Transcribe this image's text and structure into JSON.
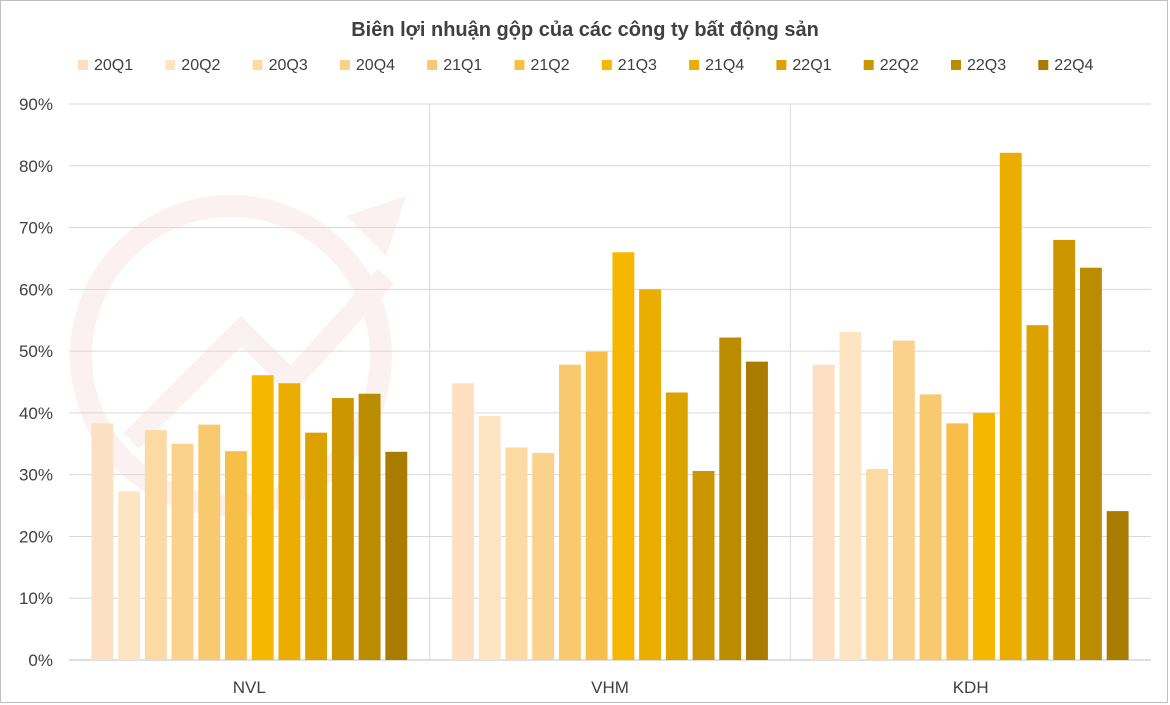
{
  "chart_data": {
    "type": "bar",
    "title": "Biên lợi nhuận gộp của các công ty bất động sản",
    "categories": [
      "NVL",
      "VHM",
      "KDH"
    ],
    "ylim": [
      0,
      90
    ],
    "y_ticks": [
      "0%",
      "10%",
      "20%",
      "30%",
      "40%",
      "50%",
      "60%",
      "70%",
      "80%",
      "90%"
    ],
    "grid": true,
    "legend_position": "top",
    "series": [
      {
        "name": "20Q1",
        "color": "#fde0c2",
        "values": [
          38.3,
          44.8,
          47.8
        ]
      },
      {
        "name": "20Q2",
        "color": "#fde5c3",
        "values": [
          27.3,
          39.5,
          53.1
        ]
      },
      {
        "name": "20Q3",
        "color": "#fdd9a3",
        "values": [
          37.2,
          34.4,
          30.9
        ]
      },
      {
        "name": "20Q4",
        "color": "#fbd28c",
        "values": [
          35.0,
          33.5,
          51.7
        ]
      },
      {
        "name": "21Q1",
        "color": "#f9c96f",
        "values": [
          38.1,
          47.8,
          43.0
        ]
      },
      {
        "name": "21Q2",
        "color": "#f7bf4a",
        "values": [
          33.8,
          49.9,
          38.3
        ]
      },
      {
        "name": "21Q3",
        "color": "#f5b700",
        "values": [
          46.1,
          66.0,
          40.0
        ]
      },
      {
        "name": "21Q4",
        "color": "#ebae00",
        "values": [
          44.8,
          60.0,
          82.1
        ]
      },
      {
        "name": "22Q1",
        "color": "#dca300",
        "values": [
          36.8,
          43.3,
          54.2
        ]
      },
      {
        "name": "22Q2",
        "color": "#cc9600",
        "values": [
          42.4,
          30.6,
          68.0
        ]
      },
      {
        "name": "22Q3",
        "color": "#bb8b00",
        "values": [
          43.1,
          52.2,
          63.5
        ]
      },
      {
        "name": "22Q4",
        "color": "#a97c00",
        "values": [
          33.7,
          48.3,
          24.1
        ]
      }
    ]
  }
}
